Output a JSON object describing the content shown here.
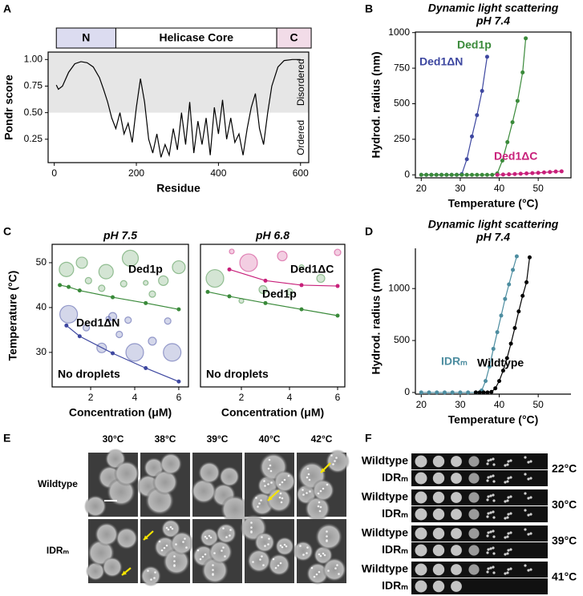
{
  "panels": [
    "A",
    "B",
    "C",
    "D",
    "E",
    "F"
  ],
  "chart_data": [
    {
      "type": "line",
      "domains": [
        {
          "label": "N",
          "start": 5,
          "end": 150,
          "color": "#dcdcf0"
        },
        {
          "label": "Helicase Core",
          "start": 150,
          "end": 542,
          "color": "#ffffff"
        },
        {
          "label": "C",
          "start": 542,
          "end": 626,
          "color": "#f2dce8"
        }
      ],
      "x_label": "Residue",
      "y_label": "Pondr score",
      "region_labels": [
        "Ordered",
        "Disordered"
      ],
      "threshold": 0.5,
      "series": [
        {
          "color": "#000000",
          "x": [
            5,
            10,
            20,
            35,
            50,
            65,
            80,
            95,
            110,
            120,
            130,
            140,
            150,
            160,
            170,
            180,
            190,
            200,
            210,
            220,
            230,
            240,
            250,
            260,
            270,
            280,
            290,
            300,
            310,
            320,
            330,
            340,
            350,
            360,
            370,
            380,
            390,
            400,
            410,
            420,
            430,
            440,
            450,
            460,
            470,
            480,
            490,
            500,
            510,
            520,
            530,
            545,
            560,
            580,
            600
          ],
          "values": [
            0.76,
            0.72,
            0.75,
            0.88,
            0.96,
            0.98,
            0.97,
            0.93,
            0.83,
            0.72,
            0.6,
            0.45,
            0.35,
            0.5,
            0.3,
            0.4,
            0.22,
            0.55,
            0.82,
            0.6,
            0.25,
            0.12,
            0.3,
            0.08,
            0.2,
            0.1,
            0.35,
            0.15,
            0.5,
            0.2,
            0.6,
            0.12,
            0.42,
            0.2,
            0.45,
            0.1,
            0.55,
            0.3,
            0.62,
            0.25,
            0.45,
            0.22,
            0.3,
            0.1,
            0.35,
            0.55,
            0.68,
            0.35,
            0.2,
            0.5,
            0.75,
            0.93,
            0.99,
            1.0,
            1.0
          ]
        }
      ],
      "xlim": [
        -15,
        620
      ],
      "xticks": [
        0,
        200,
        400,
        600
      ],
      "ylim": [
        0.03,
        1.07
      ],
      "yticks": [
        0.25,
        {
          "value": 0.5,
          "label": "0.50"
        },
        0.75,
        {
          "value": 1,
          "label": "1.00"
        }
      ]
    },
    {
      "type": "line",
      "title": "Dynamic light scattering",
      "subtitle": "pH 7.4",
      "x_label": "Temperature (°C)",
      "y_label": "Hydrod. radius (nm)",
      "series": [
        {
          "name": "Ded1ΔN",
          "color": "#3d47a0",
          "x": [
            20,
            21.3,
            22.6,
            23.9,
            25.2,
            26.5,
            27.8,
            29.1,
            30.4,
            31.7,
            33,
            34.3,
            35.6,
            36.9
          ],
          "values": [
            0,
            0,
            0,
            0,
            0,
            0,
            0,
            0,
            5,
            110,
            270,
            420,
            590,
            830
          ]
        },
        {
          "name": "Ded1p",
          "color": "#3a8a3a",
          "x": [
            20,
            21.3,
            22.6,
            23.9,
            25.2,
            26.5,
            27.8,
            29.1,
            30.4,
            31.7,
            33,
            34.3,
            35.6,
            36.9,
            38.2,
            39.5,
            40.8,
            42.1,
            43.4,
            44.7,
            46,
            46.8
          ],
          "values": [
            0,
            0,
            0,
            0,
            0,
            0,
            0,
            0,
            0,
            0,
            0,
            0,
            0,
            0,
            0,
            10,
            100,
            230,
            370,
            520,
            720,
            960
          ]
        },
        {
          "name": "Ded1ΔC",
          "color": "#c8207a",
          "x": [
            39.5,
            41,
            42.5,
            44,
            45.5,
            47,
            48.5,
            50,
            51.5,
            53,
            54.5,
            56
          ],
          "values": [
            0,
            2,
            4,
            6,
            8,
            10,
            12,
            14,
            17,
            20,
            23,
            25
          ]
        }
      ],
      "xlim": [
        18.5,
        58.4
      ],
      "xticks": [
        20,
        30,
        40,
        50
      ],
      "ylim": [
        -21,
        1004
      ],
      "yticks": [
        0,
        250,
        500,
        750,
        1000
      ]
    },
    {
      "type": "scatter",
      "title": "pH 7.5",
      "x_label": "Concentration (μM)",
      "y_label": "Temperature (°C)",
      "annotation": "No droplets",
      "series": [
        {
          "name": "Ded1p",
          "color": "#3a8a3a",
          "x": [
            0.6,
            1,
            1.5,
            3,
            4.5,
            6
          ],
          "values": [
            45,
            44.6,
            43.8,
            42.3,
            41,
            39.6
          ],
          "bubbles": {
            "x": [
              0.9,
              1.6,
              2.7,
              3.8,
              3.5,
              2.5,
              4.5,
              5.3,
              4.8,
              6,
              1.9
            ],
            "values": [
              48.5,
              50,
              48,
              51,
              45.3,
              44.3,
              45.5,
              46,
              43,
              49,
              46
            ],
            "sizes": [
              9,
              7,
              9,
              10,
              4,
              4,
              3,
              6,
              4,
              8,
              4
            ]
          }
        },
        {
          "name": "Ded1ΔN",
          "color": "#3d47a0",
          "x": [
            0.9,
            1.5,
            3,
            4.5,
            6
          ],
          "values": [
            36,
            33.6,
            29.8,
            26.5,
            23.5
          ],
          "bubbles": {
            "x": [
              1,
              3,
              1.8,
              3.7,
              5.5,
              4,
              5.7,
              2.5,
              4.8,
              3.3,
              2.8
            ],
            "values": [
              38.5,
              38,
              35.5,
              37.2,
              37,
              30,
              30,
              31,
              32.5,
              34,
              37.5
            ],
            "sizes": [
              11,
              5,
              4,
              4,
              4,
              11,
              11,
              6,
              5,
              4,
              3
            ]
          }
        }
      ],
      "xlim": [
        0.25,
        6.44
      ],
      "xticks": [
        2,
        4,
        6
      ],
      "ylim": [
        22.3,
        54.1
      ],
      "yticks": [
        30,
        40,
        50
      ]
    },
    {
      "type": "scatter",
      "title": "pH 6.8",
      "x_label": "Concentration (μM)",
      "annotation": "No droplets",
      "series": [
        {
          "name": "Ded1ΔC",
          "color": "#c8207a",
          "x": [
            1.5,
            3,
            4.5,
            6
          ],
          "values": [
            48.5,
            46,
            45,
            44.8
          ],
          "bubbles": {
            "x": [
              2.3,
              3.7,
              6,
              1.6
            ],
            "values": [
              50,
              51.5,
              52.3,
              52.5
            ],
            "sizes": [
              11,
              6,
              4,
              3
            ]
          }
        },
        {
          "name": "Ded1p",
          "color": "#3a8a3a",
          "x": [
            0.6,
            1.5,
            3,
            4.5,
            6
          ],
          "values": [
            43.5,
            42.5,
            41,
            39.6,
            38.2
          ],
          "bubbles": {
            "x": [
              0.9,
              2.9,
              4,
              5.3,
              4.5,
              2
            ],
            "values": [
              46.5,
              44,
              43.5,
              46.5,
              49,
              41.5
            ],
            "sizes": [
              11,
              5,
              4,
              5,
              3,
              3
            ]
          }
        }
      ],
      "xlim": [
        0.3,
        6.3
      ],
      "xticks": [
        2,
        4,
        6
      ],
      "ylim": [
        22.3,
        54.1
      ]
    },
    {
      "type": "line",
      "title": "Dynamic light scattering",
      "subtitle": "pH 7.4",
      "x_label": "Temperature (°C)",
      "y_label": "Hydrod. radius (nm)",
      "series": [
        {
          "name": "IDRₘ",
          "color": "#4d8da0",
          "x": [
            20,
            22,
            24,
            26,
            28,
            30,
            32,
            34,
            35.5,
            36.5,
            37.5,
            38.5,
            39.5,
            40.5,
            41.5,
            42.5,
            43.5,
            44.5
          ],
          "values": [
            0,
            0,
            0,
            0,
            0,
            0,
            0,
            0,
            20,
            110,
            250,
            420,
            580,
            740,
            900,
            1040,
            1180,
            1310
          ]
        },
        {
          "name": "Wildtype",
          "color": "#000000",
          "x": [
            34,
            35,
            36,
            37,
            38,
            39,
            40,
            41,
            42,
            43,
            44,
            45,
            46,
            47,
            47.8
          ],
          "values": [
            0,
            0,
            0,
            0,
            5,
            40,
            110,
            210,
            330,
            470,
            620,
            780,
            930,
            1060,
            1300
          ]
        }
      ],
      "xlim": [
        18.5,
        58.4
      ],
      "xticks": [
        20,
        30,
        40,
        50
      ],
      "ylim": [
        -16,
        1387
      ],
      "yticks": [
        0,
        500,
        1000
      ]
    }
  ],
  "microscopy": {
    "temperatures": [
      "30°C",
      "38°C",
      "39°C",
      "40°C",
      "42°C"
    ],
    "strains": [
      "Wildtype",
      "IDRₘ"
    ]
  },
  "spot_assay": {
    "groups": [
      {
        "temperature": "22°C",
        "strains": [
          "Wildtype",
          "IDRₘ"
        ]
      },
      {
        "temperature": "30°C",
        "strains": [
          "Wildtype",
          "IDRₘ"
        ]
      },
      {
        "temperature": "39°C",
        "strains": [
          "Wildtype",
          "IDRₘ"
        ]
      },
      {
        "temperature": "41°C",
        "strains": [
          "Wildtype",
          "IDRₘ"
        ]
      }
    ]
  }
}
